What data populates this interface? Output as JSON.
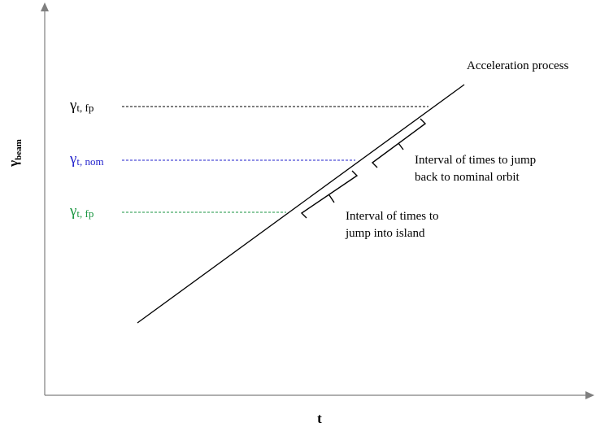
{
  "axes": {
    "x_label": "t",
    "y_label_main": "γ",
    "y_label_sub": "beam"
  },
  "process_label": "Acceleration process",
  "levels": [
    {
      "main": "γ",
      "sub": "t, fp",
      "color": "#000000"
    },
    {
      "main": "γ",
      "sub": "t, nom",
      "color": "#2222cc"
    },
    {
      "main": "γ",
      "sub": "t, fp",
      "color": "#1a9641"
    }
  ],
  "brackets": [
    {
      "line1": "Interval of times to jump",
      "line2": "back to nominal orbit"
    },
    {
      "line1": "Interval of times to",
      "line2": "jump into island"
    }
  ],
  "colors": {
    "axis": "#7f7f7f",
    "line": "#000000"
  }
}
